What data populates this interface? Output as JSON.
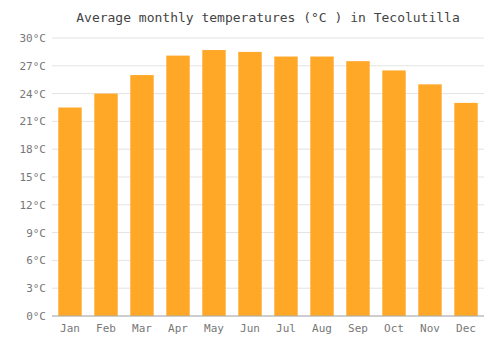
{
  "chart_data": {
    "type": "bar",
    "title": "Average monthly temperatures (°C ) in Tecolutilla",
    "categories": [
      "Jan",
      "Feb",
      "Mar",
      "Apr",
      "May",
      "Jun",
      "Jul",
      "Aug",
      "Sep",
      "Oct",
      "Nov",
      "Dec"
    ],
    "values": [
      22.5,
      24.0,
      26.0,
      28.1,
      28.7,
      28.5,
      28.0,
      28.0,
      27.5,
      26.5,
      25.0,
      23.0
    ],
    "color": "#FFA726",
    "ylim": [
      0,
      30
    ],
    "yticks": [
      {
        "value": 0,
        "label": "0°C"
      },
      {
        "value": 3,
        "label": "3°C"
      },
      {
        "value": 6,
        "label": "6°C"
      },
      {
        "value": 9,
        "label": "9°C"
      },
      {
        "value": 12,
        "label": "12°C"
      },
      {
        "value": 15,
        "label": "15°C"
      },
      {
        "value": 18,
        "label": "18°C"
      },
      {
        "value": 21,
        "label": "21°C"
      },
      {
        "value": 24,
        "label": "24°C"
      },
      {
        "value": 27,
        "label": "27°C"
      },
      {
        "value": 30,
        "label": "30°C"
      }
    ],
    "grid": true
  }
}
